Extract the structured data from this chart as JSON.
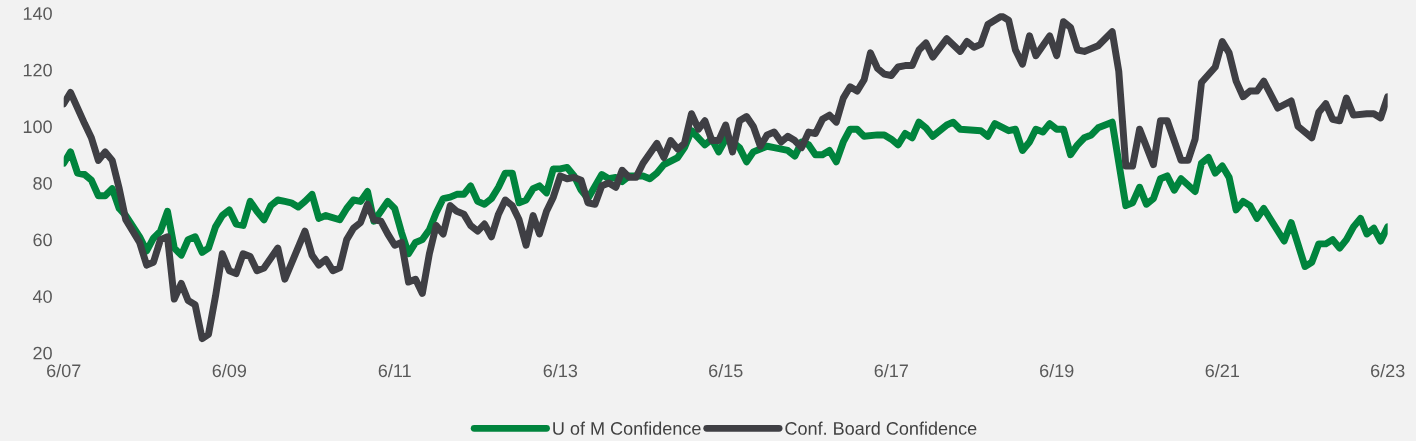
{
  "chart_data": {
    "type": "line",
    "xlim": [
      "2007-06",
      "2023-06"
    ],
    "xticks": [
      {
        "value": "2007-06",
        "label": "6/07"
      },
      {
        "value": "2009-06",
        "label": "6/09"
      },
      {
        "value": "2011-06",
        "label": "6/11"
      },
      {
        "value": "2013-06",
        "label": "6/13"
      },
      {
        "value": "2015-06",
        "label": "6/15"
      },
      {
        "value": "2017-06",
        "label": "6/17"
      },
      {
        "value": "2019-06",
        "label": "6/19"
      },
      {
        "value": "2021-06",
        "label": "6/21"
      },
      {
        "value": "2023-06",
        "label": "6/23"
      }
    ],
    "ylim": [
      20,
      140
    ],
    "yticks": [
      20,
      40,
      60,
      80,
      100,
      120,
      140
    ],
    "grid": false,
    "legend": "bottom",
    "marker": "none",
    "line_style": "solid",
    "series": [
      {
        "name": "U of M Confidence",
        "color": "#00843d",
        "x": [
          "2007-06",
          "2007-07",
          "2007-08",
          "2007-09",
          "2007-10",
          "2007-11",
          "2007-12",
          "2008-01",
          "2008-02",
          "2008-03",
          "2008-05",
          "2008-06",
          "2008-07",
          "2008-08",
          "2008-09",
          "2008-10",
          "2008-11",
          "2008-12",
          "2009-01",
          "2009-02",
          "2009-03",
          "2009-04",
          "2009-05",
          "2009-06",
          "2009-07",
          "2009-08",
          "2009-09",
          "2009-10",
          "2009-11",
          "2009-12",
          "2010-01",
          "2010-02",
          "2010-03",
          "2010-04",
          "2010-05",
          "2010-06",
          "2010-07",
          "2010-08",
          "2010-10",
          "2010-11",
          "2010-12",
          "2011-01",
          "2011-02",
          "2011-03",
          "2011-04",
          "2011-05",
          "2011-06",
          "2011-07",
          "2011-08",
          "2011-09",
          "2011-10",
          "2011-11",
          "2011-12",
          "2012-01",
          "2012-02",
          "2012-03",
          "2012-04",
          "2012-05",
          "2012-06",
          "2012-07",
          "2012-08",
          "2012-09",
          "2012-10",
          "2012-11",
          "2012-12",
          "2013-01",
          "2013-02",
          "2013-03",
          "2013-04",
          "2013-05",
          "2013-06",
          "2013-07",
          "2013-08",
          "2013-09",
          "2013-10",
          "2013-12",
          "2014-01",
          "2014-02",
          "2014-03",
          "2014-04",
          "2014-06",
          "2014-07",
          "2014-08",
          "2014-09",
          "2014-11",
          "2014-12",
          "2015-01",
          "2015-03",
          "2015-04",
          "2015-05",
          "2015-06",
          "2015-07",
          "2015-08",
          "2015-09",
          "2015-10",
          "2015-12",
          "2016-01",
          "2016-03",
          "2016-04",
          "2016-05",
          "2016-06",
          "2016-07",
          "2016-08",
          "2016-09",
          "2016-10",
          "2016-11",
          "2016-12",
          "2017-01",
          "2017-02",
          "2017-04",
          "2017-05",
          "2017-06",
          "2017-07",
          "2017-08",
          "2017-09",
          "2017-10",
          "2017-11",
          "2017-12",
          "2018-02",
          "2018-03",
          "2018-04",
          "2018-07",
          "2018-08",
          "2018-09",
          "2018-11",
          "2018-12",
          "2019-01",
          "2019-02",
          "2019-03",
          "2019-04",
          "2019-05",
          "2019-06",
          "2019-07",
          "2019-08",
          "2019-09",
          "2019-10",
          "2019-11",
          "2019-12",
          "2020-01",
          "2020-02",
          "2020-04",
          "2020-05",
          "2020-06",
          "2020-07",
          "2020-08",
          "2020-09",
          "2020-10",
          "2020-11",
          "2020-12",
          "2021-02",
          "2021-03",
          "2021-04",
          "2021-05",
          "2021-06",
          "2021-07",
          "2021-08",
          "2021-09",
          "2021-10",
          "2021-11",
          "2021-12",
          "2022-03",
          "2022-04",
          "2022-06",
          "2022-07",
          "2022-08",
          "2022-09",
          "2022-10",
          "2022-11",
          "2022-12",
          "2023-01",
          "2023-02",
          "2023-03",
          "2023-04",
          "2023-05",
          "2023-06"
        ],
        "values": [
          87,
          91,
          83.5,
          83,
          81,
          75.5,
          75.5,
          78,
          71,
          68.5,
          61,
          56,
          60.5,
          63,
          70,
          57,
          54.5,
          60,
          61,
          55.5,
          57,
          64.5,
          68.5,
          70.5,
          65.5,
          65,
          73.5,
          70,
          67,
          72,
          74,
          73.5,
          73,
          71.5,
          73.5,
          76,
          67.5,
          68.5,
          67,
          71,
          74,
          73.5,
          77,
          66.5,
          70,
          73.5,
          71,
          62.5,
          55,
          59,
          60,
          63.5,
          69.5,
          74.5,
          75,
          76,
          76,
          79,
          73.5,
          72.5,
          74.5,
          78.5,
          83.5,
          83.5,
          73,
          74,
          78,
          79,
          76.5,
          85,
          85,
          85.5,
          82.5,
          77.5,
          74.5,
          83,
          81.5,
          82,
          80.5,
          82.5,
          82.5,
          81.5,
          83.5,
          86.5,
          89,
          92.5,
          98.5,
          93.5,
          95.5,
          91,
          95.5,
          94.5,
          92.5,
          87.5,
          91,
          93,
          92.5,
          91.5,
          89.5,
          94.5,
          93.5,
          90,
          90,
          91.5,
          87.5,
          94.5,
          99,
          99,
          96.5,
          97,
          97,
          95.5,
          93.5,
          97.5,
          96,
          101.5,
          99.5,
          96.5,
          100.5,
          101.5,
          99,
          98.5,
          96.5,
          101,
          98.5,
          99,
          91.5,
          94.5,
          99,
          98,
          101,
          99,
          99,
          90,
          93.5,
          96,
          97,
          99.5,
          100.5,
          101.5,
          72,
          73,
          78.5,
          72.5,
          74.5,
          81.5,
          82.5,
          77.5,
          81.5,
          77,
          87,
          89,
          83.5,
          86,
          82,
          70.5,
          73.5,
          72,
          67.5,
          71,
          59.5,
          66,
          50.5,
          52,
          58.5,
          58.5,
          60,
          57,
          60,
          64.5,
          67.5,
          62,
          64,
          59.5,
          64.5
        ]
      },
      {
        "name": "Conf. Board Confidence",
        "color": "#3f3f44",
        "x": [
          "2007-06",
          "2007-07",
          "2007-09",
          "2007-10",
          "2007-11",
          "2007-12",
          "2008-01",
          "2008-02",
          "2008-03",
          "2008-05",
          "2008-06",
          "2008-07",
          "2008-08",
          "2008-09",
          "2008-10",
          "2008-11",
          "2008-12",
          "2009-01",
          "2009-02",
          "2009-03",
          "2009-04",
          "2009-05",
          "2009-06",
          "2009-07",
          "2009-08",
          "2009-09",
          "2009-10",
          "2009-11",
          "2010-01",
          "2010-02",
          "2010-05",
          "2010-06",
          "2010-07",
          "2010-08",
          "2010-09",
          "2010-10",
          "2010-11",
          "2010-12",
          "2011-01",
          "2011-02",
          "2011-03",
          "2011-04",
          "2011-05",
          "2011-06",
          "2011-07",
          "2011-08",
          "2011-09",
          "2011-10",
          "2011-11",
          "2011-12",
          "2012-01",
          "2012-02",
          "2012-03",
          "2012-04",
          "2012-05",
          "2012-06",
          "2012-07",
          "2012-08",
          "2012-09",
          "2012-10",
          "2012-11",
          "2012-12",
          "2013-01",
          "2013-02",
          "2013-03",
          "2013-04",
          "2013-05",
          "2013-06",
          "2013-07",
          "2013-08",
          "2013-09",
          "2013-10",
          "2013-11",
          "2013-12",
          "2014-01",
          "2014-02",
          "2014-03",
          "2014-04",
          "2014-05",
          "2014-06",
          "2014-08",
          "2014-09",
          "2014-10",
          "2014-11",
          "2014-12",
          "2015-01",
          "2015-02",
          "2015-03",
          "2015-04",
          "2015-05",
          "2015-06",
          "2015-07",
          "2015-08",
          "2015-09",
          "2015-10",
          "2015-11",
          "2015-12",
          "2016-01",
          "2016-02",
          "2016-03",
          "2016-04",
          "2016-05",
          "2016-06",
          "2016-07",
          "2016-08",
          "2016-09",
          "2016-10",
          "2016-11",
          "2016-12",
          "2017-01",
          "2017-02",
          "2017-03",
          "2017-04",
          "2017-05",
          "2017-06",
          "2017-07",
          "2017-08",
          "2017-09",
          "2017-10",
          "2017-11",
          "2017-12",
          "2018-02",
          "2018-04",
          "2018-05",
          "2018-06",
          "2018-07",
          "2018-08",
          "2018-10",
          "2018-11",
          "2018-12",
          "2019-01",
          "2019-02",
          "2019-03",
          "2019-05",
          "2019-06",
          "2019-07",
          "2019-08",
          "2019-09",
          "2019-10",
          "2019-12",
          "2020-02",
          "2020-03",
          "2020-04",
          "2020-05",
          "2020-06",
          "2020-08",
          "2020-09",
          "2020-10",
          "2020-12",
          "2021-01",
          "2021-02",
          "2021-03",
          "2021-05",
          "2021-06",
          "2021-07",
          "2021-08",
          "2021-09",
          "2021-10",
          "2021-11",
          "2021-12",
          "2022-02",
          "2022-04",
          "2022-05",
          "2022-07",
          "2022-08",
          "2022-09",
          "2022-10",
          "2022-11",
          "2022-12",
          "2023-01",
          "2023-03",
          "2023-04",
          "2023-05",
          "2023-06"
        ],
        "values": [
          108,
          112,
          101,
          96,
          88,
          91,
          88,
          78,
          67,
          59,
          51,
          52,
          60,
          61,
          39,
          44.5,
          38.5,
          37,
          25,
          26.5,
          40,
          55,
          49,
          48,
          55,
          54,
          49,
          50,
          57,
          46,
          63,
          54.5,
          51,
          53,
          49,
          50,
          60,
          64,
          66,
          72.5,
          67,
          66.5,
          62,
          58,
          59,
          45,
          46,
          41,
          55,
          65,
          62,
          72,
          70,
          69,
          65,
          63,
          65.5,
          61,
          69,
          74,
          72,
          67,
          58,
          68.5,
          62,
          70,
          75,
          82.5,
          81.5,
          82,
          81,
          73,
          72.5,
          79,
          80,
          78.5,
          84.5,
          82,
          82,
          87,
          94,
          89,
          95,
          92,
          94,
          104.5,
          99,
          102,
          95,
          95,
          100.5,
          91,
          102,
          103.5,
          100,
          93,
          97,
          98,
          94.5,
          96.5,
          95,
          92.5,
          98,
          97.5,
          102.5,
          104,
          101.5,
          110,
          114,
          112.5,
          116.5,
          126,
          120.5,
          118.5,
          118,
          121,
          121.5,
          121.5,
          127,
          129.5,
          124.5,
          131,
          126.5,
          130,
          128,
          129,
          136,
          139,
          137.5,
          127,
          122,
          132,
          125,
          132,
          125,
          137,
          135,
          127,
          126.5,
          128.5,
          133.5,
          119.5,
          86,
          86,
          99,
          86.5,
          102,
          102,
          88,
          88,
          95.5,
          115.5,
          121,
          130,
          126,
          116,
          110.5,
          112.5,
          112.5,
          116,
          106.5,
          109,
          100,
          96,
          105,
          108,
          102.5,
          102,
          110,
          104,
          104.5,
          104.5,
          103,
          110.5
        ]
      }
    ]
  }
}
